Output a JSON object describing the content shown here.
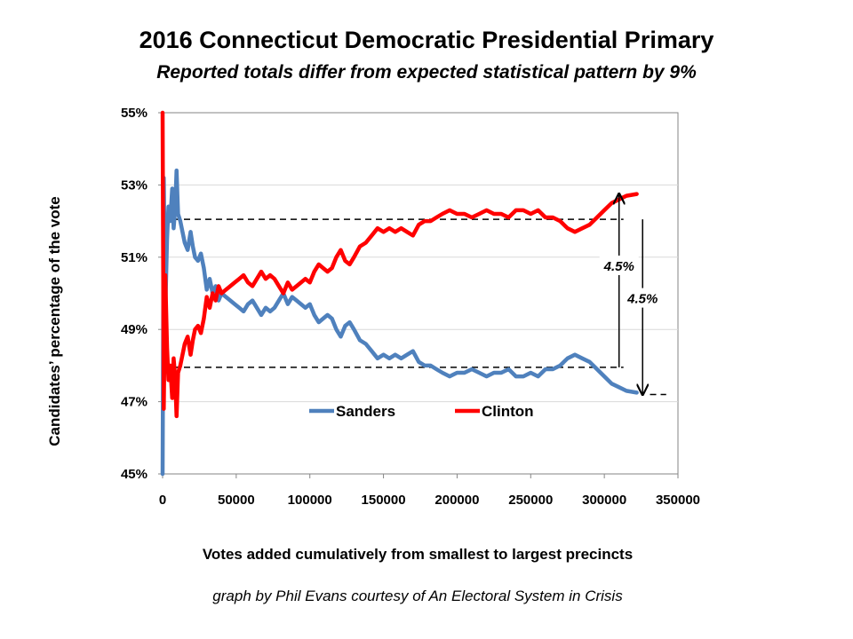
{
  "chart_data": {
    "type": "line",
    "title": "2016 Connecticut Democratic Presidential Primary",
    "subtitle": "Reported totals differ from expected statistical pattern by 9%",
    "xlabel": "Votes added cumulatively from smallest to largest precincts",
    "ylabel": "Candidates’ percentage of the vote",
    "credit": "graph by Phil Evans courtesy of An Electoral System in Crisis",
    "xlim": [
      0,
      350000
    ],
    "ylim": [
      45,
      55
    ],
    "x_ticks": [
      0,
      50000,
      100000,
      150000,
      200000,
      250000,
      300000,
      350000
    ],
    "y_ticks": [
      45,
      47,
      49,
      51,
      53,
      55
    ],
    "y_tick_labels": [
      "45%",
      "47%",
      "49%",
      "51%",
      "53%",
      "55%"
    ],
    "grid": "horizontal",
    "legend_position": "bottom-center",
    "series": [
      {
        "name": "Sanders",
        "color": "#4F81BD",
        "points": [
          [
            0,
            45
          ],
          [
            800,
            53.2
          ],
          [
            1800,
            49.5
          ],
          [
            3000,
            51.5
          ],
          [
            4000,
            52.4
          ],
          [
            5200,
            52.0
          ],
          [
            6500,
            52.9
          ],
          [
            7500,
            51.8
          ],
          [
            8500,
            52.3
          ],
          [
            9500,
            53.4
          ],
          [
            10500,
            52.2
          ],
          [
            12000,
            52.0
          ],
          [
            13500,
            51.7
          ],
          [
            15000,
            51.4
          ],
          [
            17000,
            51.2
          ],
          [
            19000,
            51.7
          ],
          [
            20500,
            51.3
          ],
          [
            22000,
            51.0
          ],
          [
            24000,
            50.9
          ],
          [
            26000,
            51.1
          ],
          [
            28000,
            50.7
          ],
          [
            30000,
            50.1
          ],
          [
            32000,
            50.4
          ],
          [
            34000,
            50.0
          ],
          [
            36000,
            50.2
          ],
          [
            38000,
            49.8
          ],
          [
            40000,
            50.0
          ],
          [
            43000,
            49.9
          ],
          [
            46000,
            49.8
          ],
          [
            49000,
            49.7
          ],
          [
            52000,
            49.6
          ],
          [
            55000,
            49.5
          ],
          [
            58000,
            49.7
          ],
          [
            61000,
            49.8
          ],
          [
            64000,
            49.6
          ],
          [
            67000,
            49.4
          ],
          [
            70000,
            49.6
          ],
          [
            73000,
            49.5
          ],
          [
            76000,
            49.6
          ],
          [
            79000,
            49.8
          ],
          [
            82000,
            50.0
          ],
          [
            85000,
            49.7
          ],
          [
            88000,
            49.9
          ],
          [
            91000,
            49.8
          ],
          [
            94000,
            49.7
          ],
          [
            97000,
            49.6
          ],
          [
            100000,
            49.7
          ],
          [
            103000,
            49.4
          ],
          [
            106000,
            49.2
          ],
          [
            109000,
            49.3
          ],
          [
            112000,
            49.4
          ],
          [
            115000,
            49.3
          ],
          [
            118000,
            49.0
          ],
          [
            121000,
            48.8
          ],
          [
            124000,
            49.1
          ],
          [
            127000,
            49.2
          ],
          [
            130000,
            49.0
          ],
          [
            134000,
            48.7
          ],
          [
            138000,
            48.6
          ],
          [
            142000,
            48.4
          ],
          [
            146000,
            48.2
          ],
          [
            150000,
            48.3
          ],
          [
            154000,
            48.2
          ],
          [
            158000,
            48.3
          ],
          [
            162000,
            48.2
          ],
          [
            166000,
            48.3
          ],
          [
            170000,
            48.4
          ],
          [
            174000,
            48.1
          ],
          [
            178000,
            48.0
          ],
          [
            182000,
            48.0
          ],
          [
            186000,
            47.9
          ],
          [
            190000,
            47.8
          ],
          [
            195000,
            47.7
          ],
          [
            200000,
            47.8
          ],
          [
            205000,
            47.8
          ],
          [
            210000,
            47.9
          ],
          [
            215000,
            47.8
          ],
          [
            220000,
            47.7
          ],
          [
            225000,
            47.8
          ],
          [
            230000,
            47.8
          ],
          [
            235000,
            47.9
          ],
          [
            240000,
            47.7
          ],
          [
            245000,
            47.7
          ],
          [
            250000,
            47.8
          ],
          [
            255000,
            47.7
          ],
          [
            260000,
            47.9
          ],
          [
            265000,
            47.9
          ],
          [
            270000,
            48.0
          ],
          [
            275000,
            48.2
          ],
          [
            280000,
            48.3
          ],
          [
            285000,
            48.2
          ],
          [
            290000,
            48.1
          ],
          [
            295000,
            47.9
          ],
          [
            300000,
            47.7
          ],
          [
            305000,
            47.5
          ],
          [
            310000,
            47.4
          ],
          [
            315000,
            47.3
          ],
          [
            322000,
            47.25
          ]
        ]
      },
      {
        "name": "Clinton",
        "color": "#FF0000",
        "points": [
          [
            0,
            55
          ],
          [
            800,
            46.8
          ],
          [
            1800,
            50.5
          ],
          [
            3000,
            48.5
          ],
          [
            4000,
            47.6
          ],
          [
            5200,
            48.0
          ],
          [
            6500,
            47.1
          ],
          [
            7500,
            48.2
          ],
          [
            8500,
            47.7
          ],
          [
            9500,
            46.6
          ],
          [
            10500,
            47.8
          ],
          [
            12000,
            48.0
          ],
          [
            13500,
            48.3
          ],
          [
            15000,
            48.6
          ],
          [
            17000,
            48.8
          ],
          [
            19000,
            48.3
          ],
          [
            20500,
            48.7
          ],
          [
            22000,
            49.0
          ],
          [
            24000,
            49.1
          ],
          [
            26000,
            48.9
          ],
          [
            28000,
            49.3
          ],
          [
            30000,
            49.9
          ],
          [
            32000,
            49.6
          ],
          [
            34000,
            50.0
          ],
          [
            36000,
            49.8
          ],
          [
            38000,
            50.2
          ],
          [
            40000,
            50.0
          ],
          [
            43000,
            50.1
          ],
          [
            46000,
            50.2
          ],
          [
            49000,
            50.3
          ],
          [
            52000,
            50.4
          ],
          [
            55000,
            50.5
          ],
          [
            58000,
            50.3
          ],
          [
            61000,
            50.2
          ],
          [
            64000,
            50.4
          ],
          [
            67000,
            50.6
          ],
          [
            70000,
            50.4
          ],
          [
            73000,
            50.5
          ],
          [
            76000,
            50.4
          ],
          [
            79000,
            50.2
          ],
          [
            82000,
            50.0
          ],
          [
            85000,
            50.3
          ],
          [
            88000,
            50.1
          ],
          [
            91000,
            50.2
          ],
          [
            94000,
            50.3
          ],
          [
            97000,
            50.4
          ],
          [
            100000,
            50.3
          ],
          [
            103000,
            50.6
          ],
          [
            106000,
            50.8
          ],
          [
            109000,
            50.7
          ],
          [
            112000,
            50.6
          ],
          [
            115000,
            50.7
          ],
          [
            118000,
            51.0
          ],
          [
            121000,
            51.2
          ],
          [
            124000,
            50.9
          ],
          [
            127000,
            50.8
          ],
          [
            130000,
            51.0
          ],
          [
            134000,
            51.3
          ],
          [
            138000,
            51.4
          ],
          [
            142000,
            51.6
          ],
          [
            146000,
            51.8
          ],
          [
            150000,
            51.7
          ],
          [
            154000,
            51.8
          ],
          [
            158000,
            51.7
          ],
          [
            162000,
            51.8
          ],
          [
            166000,
            51.7
          ],
          [
            170000,
            51.6
          ],
          [
            174000,
            51.9
          ],
          [
            178000,
            52.0
          ],
          [
            182000,
            52.0
          ],
          [
            186000,
            52.1
          ],
          [
            190000,
            52.2
          ],
          [
            195000,
            52.3
          ],
          [
            200000,
            52.2
          ],
          [
            205000,
            52.2
          ],
          [
            210000,
            52.1
          ],
          [
            215000,
            52.2
          ],
          [
            220000,
            52.3
          ],
          [
            225000,
            52.2
          ],
          [
            230000,
            52.2
          ],
          [
            235000,
            52.1
          ],
          [
            240000,
            52.3
          ],
          [
            245000,
            52.3
          ],
          [
            250000,
            52.2
          ],
          [
            255000,
            52.3
          ],
          [
            260000,
            52.1
          ],
          [
            265000,
            52.1
          ],
          [
            270000,
            52.0
          ],
          [
            275000,
            51.8
          ],
          [
            280000,
            51.7
          ],
          [
            285000,
            51.8
          ],
          [
            290000,
            51.9
          ],
          [
            295000,
            52.1
          ],
          [
            300000,
            52.3
          ],
          [
            305000,
            52.5
          ],
          [
            310000,
            52.6
          ],
          [
            315000,
            52.7
          ],
          [
            322000,
            52.75
          ]
        ]
      }
    ],
    "reference_lines": [
      {
        "y": 52.05,
        "x_from": 0,
        "x_to": 313000
      },
      {
        "y": 47.95,
        "x_from": 0,
        "x_to": 313000
      },
      {
        "y": 47.2,
        "x_from": 331000,
        "x_to": 342000
      }
    ],
    "annotations": [
      {
        "text": "4.5%",
        "x": 310000,
        "y_from": 47.95,
        "y_to": 52.75,
        "label_y": 50.75
      },
      {
        "text": "4.5%",
        "x": 326000,
        "y_from": 52.05,
        "y_to": 47.2,
        "label_y": 49.85
      }
    ]
  }
}
